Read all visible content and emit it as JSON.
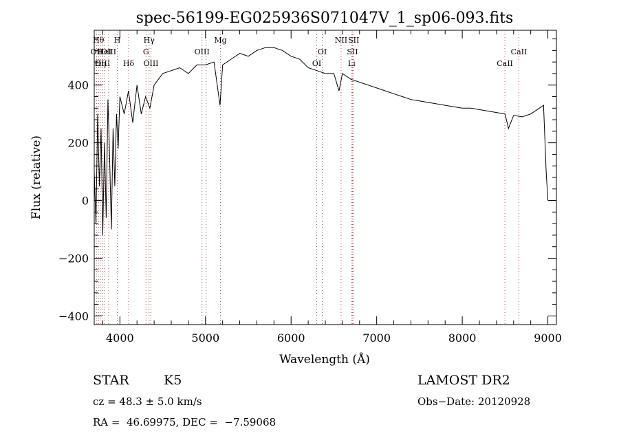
{
  "chart_data": {
    "type": "line",
    "title": "spec-56199-EG025936S071047V_1_sp06-093.fits",
    "xlabel": "Wavelength (Å)",
    "ylabel": "Flux (relative)",
    "xlim": [
      3700,
      9100
    ],
    "ylim": [
      -430,
      590
    ],
    "xticks": [
      4000,
      5000,
      6000,
      7000,
      8000,
      9000
    ],
    "yticks": [
      -400,
      -200,
      0,
      200,
      400
    ],
    "xtick_labels": [
      "4000",
      "5000",
      "6000",
      "7000",
      "8000",
      "9000"
    ],
    "ytick_labels": [
      "−400",
      "−200",
      "0",
      "200",
      "400"
    ],
    "grid": false,
    "series": [
      {
        "x": [
          3700,
          3720,
          3740,
          3760,
          3780,
          3800,
          3820,
          3840,
          3860,
          3880,
          3900,
          3920,
          3940,
          3960,
          3980,
          4000,
          4050,
          4100,
          4150,
          4200,
          4250,
          4300,
          4350,
          4400,
          4450,
          4500,
          4600,
          4700,
          4800,
          4900,
          5000,
          5100,
          5170,
          5200,
          5300,
          5400,
          5500,
          5600,
          5700,
          5800,
          5900,
          6000,
          6100,
          6200,
          6300,
          6400,
          6500,
          6560,
          6600,
          6700,
          6800,
          6900,
          7000,
          7100,
          7200,
          7300,
          7400,
          7500,
          7600,
          7700,
          7800,
          7900,
          8000,
          8100,
          8200,
          8300,
          8400,
          8500,
          8540,
          8600,
          8700,
          8800,
          8900,
          8950,
          8980,
          9000
        ],
        "y": [
          100,
          -80,
          300,
          50,
          250,
          -120,
          200,
          -60,
          350,
          150,
          -100,
          250,
          50,
          300,
          180,
          360,
          300,
          380,
          270,
          400,
          300,
          360,
          320,
          400,
          420,
          440,
          450,
          460,
          440,
          470,
          470,
          480,
          330,
          470,
          490,
          510,
          500,
          520,
          530,
          530,
          520,
          500,
          490,
          460,
          450,
          440,
          440,
          380,
          440,
          420,
          410,
          400,
          390,
          380,
          370,
          360,
          350,
          345,
          340,
          335,
          330,
          325,
          320,
          320,
          315,
          310,
          305,
          300,
          250,
          295,
          290,
          300,
          320,
          330,
          100,
          0
        ]
      }
    ],
    "lines": [
      {
        "x": 3727,
        "label": "OII",
        "row": 1
      },
      {
        "x": 3750,
        "label": "Hθ",
        "row": 0
      },
      {
        "x": 3771,
        "label": "Hη",
        "row": 2
      },
      {
        "x": 3798,
        "label": "OIII",
        "row": 2
      },
      {
        "x": 3820,
        "label": "HeI",
        "row": 1
      },
      {
        "x": 3869,
        "label": "OIII",
        "row": 1
      },
      {
        "x": 3970,
        "label": "H",
        "row": 0
      },
      {
        "x": 4102,
        "label": "Hδ",
        "row": 2
      },
      {
        "x": 4305,
        "label": "G",
        "row": 1
      },
      {
        "x": 4341,
        "label": "Hγ",
        "row": 0
      },
      {
        "x": 4363,
        "label": "OIII",
        "row": 2
      },
      {
        "x": 4959,
        "label": "OIII",
        "row": 1
      },
      {
        "x": 5007,
        "label": "",
        "row": 1
      },
      {
        "x": 5175,
        "label": "Mg",
        "row": 0
      },
      {
        "x": 6300,
        "label": "OI",
        "row": 2
      },
      {
        "x": 6364,
        "label": "OI",
        "row": 1
      },
      {
        "x": 6584,
        "label": "NII",
        "row": 0
      },
      {
        "x": 6708,
        "label": "Li",
        "row": 2
      },
      {
        "x": 6717,
        "label": "SII",
        "row": 1
      },
      {
        "x": 6731,
        "label": "SII",
        "row": 0
      },
      {
        "x": 8498,
        "label": "CaII",
        "row": 2
      },
      {
        "x": 8662,
        "label": "CaII",
        "row": 1
      }
    ]
  },
  "footer": {
    "object_class": "STAR",
    "subclass": "K5",
    "survey": "LAMOST DR2",
    "cz": "cz = 48.3 ± 5.0 km/s",
    "obs_date": "Obs−Date: 20120928",
    "coords": "RA =  46.69975, DEC =  −7.59068"
  }
}
